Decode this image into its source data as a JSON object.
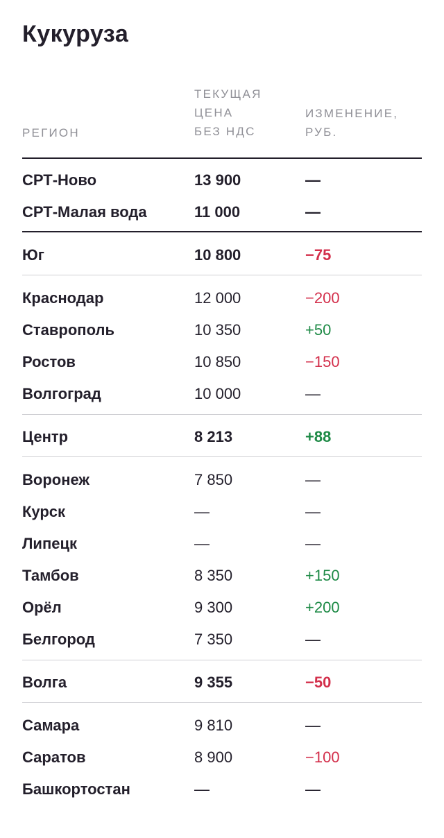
{
  "title": "Кукуруза",
  "headers": {
    "region": "РЕГИОН",
    "price": [
      "ТЕКУЩАЯ",
      "ЦЕНА",
      "БЕЗ НДС"
    ],
    "change": [
      "ИЗМЕНЕНИЕ,",
      "РУБ."
    ]
  },
  "rows": [
    {
      "region": "СРТ-Ново",
      "price": "13 900",
      "change": "—",
      "bold": true,
      "trend": "none"
    },
    {
      "region": "СРТ-Малая вода",
      "price": "11 000",
      "change": "—",
      "bold": true,
      "trend": "none"
    },
    {
      "region": "Юг",
      "price": "10 800",
      "change": "−75",
      "bold": true,
      "trend": "neg"
    },
    {
      "region": "Краснодар",
      "price": "12 000",
      "change": "−200",
      "bold": false,
      "trend": "neg"
    },
    {
      "region": "Ставрополь",
      "price": "10 350",
      "change": "+50",
      "bold": false,
      "trend": "pos"
    },
    {
      "region": "Ростов",
      "price": "10 850",
      "change": "−150",
      "bold": false,
      "trend": "neg"
    },
    {
      "region": "Волгоград",
      "price": "10 000",
      "change": "—",
      "bold": false,
      "trend": "none"
    },
    {
      "region": "Центр",
      "price": "8 213",
      "change": "+88",
      "bold": true,
      "trend": "pos"
    },
    {
      "region": "Воронеж",
      "price": "7 850",
      "change": "—",
      "bold": false,
      "trend": "none"
    },
    {
      "region": "Курск",
      "price": "—",
      "change": "—",
      "bold": false,
      "trend": "none"
    },
    {
      "region": "Липецк",
      "price": "—",
      "change": "—",
      "bold": false,
      "trend": "none"
    },
    {
      "region": "Тамбов",
      "price": "8 350",
      "change": "+150",
      "bold": false,
      "trend": "pos"
    },
    {
      "region": "Орёл",
      "price": "9 300",
      "change": "+200",
      "bold": false,
      "trend": "pos"
    },
    {
      "region": "Белгород",
      "price": "7 350",
      "change": "—",
      "bold": false,
      "trend": "none"
    },
    {
      "region": "Волга",
      "price": "9 355",
      "change": "−50",
      "bold": true,
      "trend": "neg"
    },
    {
      "region": "Самара",
      "price": "9 810",
      "change": "—",
      "bold": false,
      "trend": "none"
    },
    {
      "region": "Саратов",
      "price": "8 900",
      "change": "−100",
      "bold": false,
      "trend": "neg"
    },
    {
      "region": "Башкортостан",
      "price": "—",
      "change": "—",
      "bold": false,
      "trend": "none"
    }
  ],
  "colors": {
    "negative": "#d32f4b",
    "positive": "#1e8a46",
    "text": "#231f2b",
    "muted": "#8f8f96"
  }
}
